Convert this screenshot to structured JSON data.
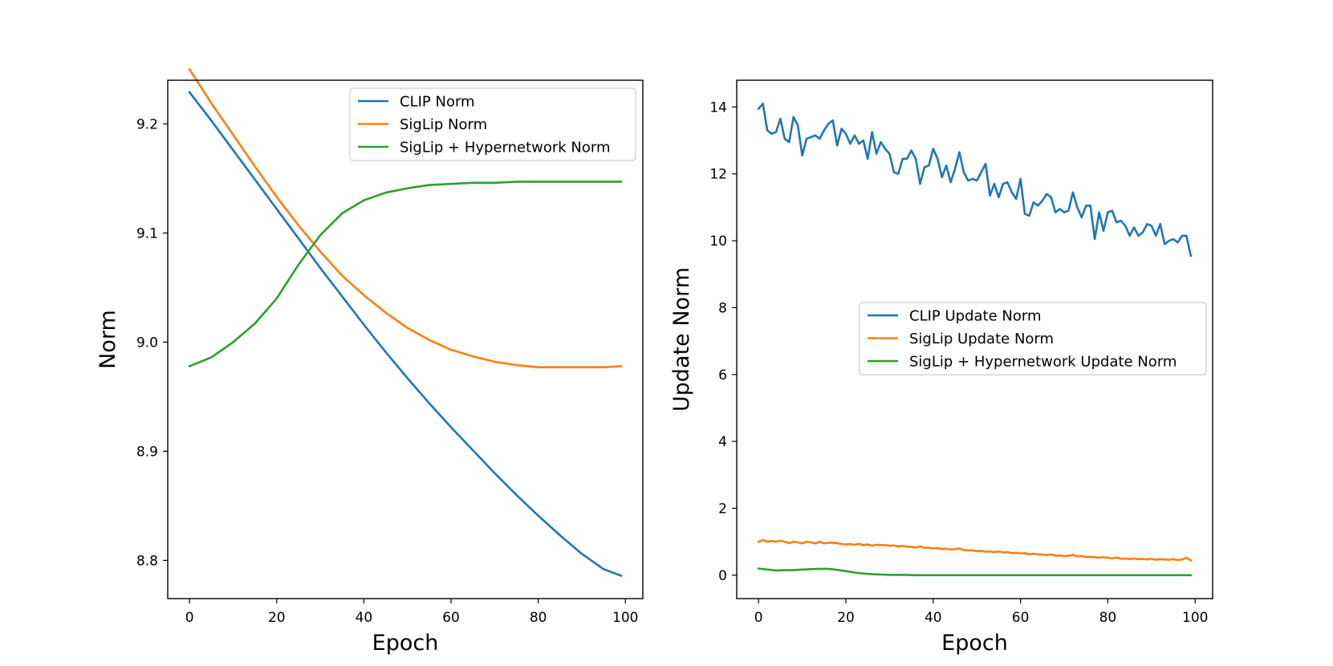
{
  "chart_data": [
    {
      "type": "line",
      "title": "",
      "xlabel": "Epoch",
      "ylabel": "Norm",
      "xlim": [
        -5,
        104
      ],
      "ylim": [
        8.765,
        9.24
      ],
      "xticks": [
        0,
        20,
        40,
        60,
        80,
        100
      ],
      "xtick_labels": [
        "0",
        "20",
        "40",
        "60",
        "80",
        "100"
      ],
      "yticks": [
        8.8,
        8.9,
        9.0,
        9.1,
        9.2
      ],
      "ytick_labels": [
        "8.8",
        "8.9",
        "9.0",
        "9.1",
        "9.2"
      ],
      "grid": false,
      "legend_position": "top-right",
      "series": [
        {
          "name": "CLIP Norm",
          "color": "#1f77b4",
          "x": [
            0,
            5,
            10,
            15,
            20,
            25,
            30,
            35,
            40,
            45,
            50,
            55,
            60,
            65,
            70,
            75,
            80,
            85,
            90,
            95,
            99
          ],
          "y": [
            9.229,
            9.203,
            9.176,
            9.149,
            9.122,
            9.095,
            9.068,
            9.042,
            9.016,
            8.991,
            8.967,
            8.944,
            8.922,
            8.901,
            8.88,
            8.86,
            8.841,
            8.823,
            8.806,
            8.792,
            8.786
          ]
        },
        {
          "name": "SigLip Norm",
          "color": "#ff7f0e",
          "x": [
            0,
            5,
            10,
            15,
            20,
            25,
            30,
            35,
            40,
            45,
            50,
            55,
            60,
            65,
            70,
            75,
            80,
            85,
            90,
            95,
            99
          ],
          "y": [
            9.25,
            9.219,
            9.19,
            9.161,
            9.133,
            9.107,
            9.083,
            9.061,
            9.043,
            9.027,
            9.013,
            9.002,
            8.993,
            8.987,
            8.982,
            8.979,
            8.977,
            8.977,
            8.977,
            8.977,
            8.978
          ]
        },
        {
          "name": "SigLip + Hypernetwork Norm",
          "color": "#2ca02c",
          "x": [
            0,
            5,
            10,
            15,
            20,
            25,
            30,
            35,
            40,
            45,
            50,
            55,
            60,
            65,
            70,
            75,
            80,
            85,
            90,
            95,
            99
          ],
          "y": [
            8.978,
            8.986,
            9.0,
            9.017,
            9.04,
            9.071,
            9.098,
            9.118,
            9.13,
            9.137,
            9.141,
            9.144,
            9.145,
            9.146,
            9.146,
            9.147,
            9.147,
            9.147,
            9.147,
            9.147,
            9.147
          ]
        }
      ]
    },
    {
      "type": "line",
      "title": "",
      "xlabel": "Epoch",
      "ylabel": "Update Norm",
      "xlim": [
        -5,
        104
      ],
      "ylim": [
        -0.7,
        14.8
      ],
      "xticks": [
        0,
        20,
        40,
        60,
        80,
        100
      ],
      "xtick_labels": [
        "0",
        "20",
        "40",
        "60",
        "80",
        "100"
      ],
      "yticks": [
        0,
        2,
        4,
        6,
        8,
        10,
        12,
        14
      ],
      "ytick_labels": [
        "0",
        "2",
        "4",
        "6",
        "8",
        "10",
        "12",
        "14"
      ],
      "grid": false,
      "legend_position": "center-right",
      "series": [
        {
          "name": "CLIP Update Norm",
          "color": "#1f77b4",
          "x": [
            0,
            1,
            2,
            3,
            4,
            5,
            6,
            7,
            8,
            9,
            10,
            11,
            12,
            13,
            14,
            15,
            16,
            17,
            18,
            19,
            20,
            21,
            22,
            23,
            24,
            25,
            26,
            27,
            28,
            29,
            30,
            31,
            32,
            33,
            34,
            35,
            36,
            37,
            38,
            39,
            40,
            41,
            42,
            43,
            44,
            45,
            46,
            47,
            48,
            49,
            50,
            51,
            52,
            53,
            54,
            55,
            56,
            57,
            58,
            59,
            60,
            61,
            62,
            63,
            64,
            65,
            66,
            67,
            68,
            69,
            70,
            71,
            72,
            73,
            74,
            75,
            76,
            77,
            78,
            79,
            80,
            81,
            82,
            83,
            84,
            85,
            86,
            87,
            88,
            89,
            90,
            91,
            92,
            93,
            94,
            95,
            96,
            97,
            98,
            99
          ],
          "y": [
            13.95,
            14.1,
            13.3,
            13.2,
            13.25,
            13.65,
            13.05,
            12.95,
            13.7,
            13.45,
            12.55,
            13.05,
            13.1,
            13.15,
            13.05,
            13.3,
            13.5,
            13.6,
            12.85,
            13.35,
            13.2,
            12.9,
            13.15,
            12.9,
            13.0,
            12.45,
            13.25,
            12.6,
            12.95,
            12.75,
            12.6,
            12.05,
            12.0,
            12.45,
            12.45,
            12.7,
            12.45,
            11.7,
            12.2,
            12.25,
            12.75,
            12.45,
            11.9,
            12.25,
            11.75,
            12.15,
            12.65,
            12.05,
            11.8,
            11.85,
            11.8,
            12.05,
            12.3,
            11.35,
            11.7,
            11.3,
            11.7,
            11.75,
            11.45,
            11.25,
            11.85,
            10.8,
            10.75,
            11.15,
            11.05,
            11.2,
            11.4,
            11.3,
            10.85,
            10.95,
            10.85,
            10.9,
            11.45,
            11.0,
            10.7,
            11.05,
            11.05,
            10.05,
            10.85,
            10.3,
            10.85,
            10.9,
            10.55,
            10.6,
            10.45,
            10.15,
            10.4,
            10.15,
            10.25,
            10.5,
            10.45,
            10.15,
            10.5,
            9.9,
            10.0,
            10.05,
            9.95,
            10.15,
            10.15,
            9.55
          ]
        },
        {
          "name": "SigLip Update Norm",
          "color": "#ff7f0e",
          "x": [
            0,
            1,
            2,
            3,
            4,
            5,
            6,
            7,
            8,
            9,
            10,
            11,
            12,
            13,
            14,
            15,
            16,
            17,
            18,
            19,
            20,
            21,
            22,
            23,
            24,
            25,
            26,
            27,
            28,
            29,
            30,
            31,
            32,
            33,
            34,
            35,
            36,
            37,
            38,
            39,
            40,
            41,
            42,
            43,
            44,
            45,
            46,
            47,
            48,
            49,
            50,
            51,
            52,
            53,
            54,
            55,
            56,
            57,
            58,
            59,
            60,
            61,
            62,
            63,
            64,
            65,
            66,
            67,
            68,
            69,
            70,
            71,
            72,
            73,
            74,
            75,
            76,
            77,
            78,
            79,
            80,
            81,
            82,
            83,
            84,
            85,
            86,
            87,
            88,
            89,
            90,
            91,
            92,
            93,
            94,
            95,
            96,
            97,
            98,
            99
          ],
          "y": [
            1.0,
            1.05,
            1.0,
            1.02,
            1.0,
            1.03,
            1.0,
            0.96,
            1.0,
            0.98,
            0.95,
            1.0,
            0.98,
            0.95,
            1.0,
            0.95,
            0.97,
            0.97,
            0.96,
            0.93,
            0.92,
            0.93,
            0.91,
            0.94,
            0.9,
            0.92,
            0.88,
            0.91,
            0.9,
            0.9,
            0.88,
            0.89,
            0.86,
            0.88,
            0.85,
            0.85,
            0.83,
            0.86,
            0.82,
            0.82,
            0.8,
            0.81,
            0.78,
            0.79,
            0.77,
            0.78,
            0.8,
            0.75,
            0.74,
            0.74,
            0.72,
            0.73,
            0.7,
            0.71,
            0.69,
            0.71,
            0.68,
            0.69,
            0.66,
            0.67,
            0.65,
            0.66,
            0.63,
            0.64,
            0.62,
            0.62,
            0.6,
            0.62,
            0.58,
            0.59,
            0.57,
            0.58,
            0.61,
            0.56,
            0.57,
            0.54,
            0.55,
            0.54,
            0.52,
            0.54,
            0.52,
            0.5,
            0.53,
            0.49,
            0.5,
            0.48,
            0.5,
            0.48,
            0.49,
            0.47,
            0.49,
            0.46,
            0.48,
            0.47,
            0.46,
            0.48,
            0.45,
            0.47,
            0.52,
            0.44
          ]
        },
        {
          "name": "SigLip + Hypernetwork Update Norm",
          "color": "#2ca02c",
          "x": [
            0,
            2,
            4,
            6,
            8,
            10,
            12,
            14,
            16,
            18,
            20,
            22,
            24,
            26,
            28,
            30,
            32,
            34,
            36,
            38,
            40,
            45,
            50,
            55,
            60,
            65,
            70,
            75,
            80,
            85,
            90,
            95,
            99
          ],
          "y": [
            0.2,
            0.17,
            0.14,
            0.15,
            0.15,
            0.17,
            0.18,
            0.19,
            0.19,
            0.16,
            0.12,
            0.08,
            0.05,
            0.03,
            0.02,
            0.01,
            0.01,
            0.01,
            0.0,
            0.0,
            0.0,
            0.0,
            0.0,
            0.0,
            0.0,
            0.0,
            0.0,
            0.0,
            0.0,
            0.0,
            0.0,
            0.0,
            0.0
          ]
        }
      ]
    }
  ]
}
